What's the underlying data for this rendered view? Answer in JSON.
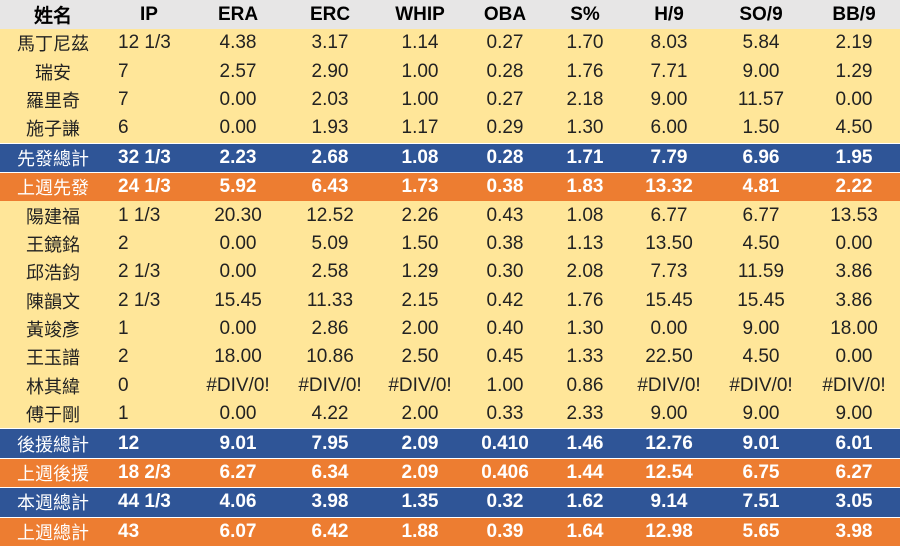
{
  "headers": [
    "姓名",
    "IP",
    "ERA",
    "ERC",
    "WHIP",
    "OBA",
    "S%",
    "H/9",
    "SO/9",
    "BB/9"
  ],
  "rows": [
    {
      "type": "player",
      "cells": [
        "馬丁尼茲",
        "12 1/3",
        "4.38",
        "3.17",
        "1.14",
        "0.27",
        "1.70",
        "8.03",
        "5.84",
        "2.19"
      ]
    },
    {
      "type": "player",
      "cells": [
        "瑞安",
        "7",
        "2.57",
        "2.90",
        "1.00",
        "0.28",
        "1.76",
        "7.71",
        "9.00",
        "1.29"
      ]
    },
    {
      "type": "player",
      "cells": [
        "羅里奇",
        "7",
        "0.00",
        "2.03",
        "1.00",
        "0.27",
        "2.18",
        "9.00",
        "11.57",
        "0.00"
      ]
    },
    {
      "type": "player",
      "cells": [
        "施子謙",
        "6",
        "0.00",
        "1.93",
        "1.17",
        "0.29",
        "1.30",
        "6.00",
        "1.50",
        "4.50"
      ]
    },
    {
      "type": "blue",
      "cells": [
        "先發總計",
        "32 1/3",
        "2.23",
        "2.68",
        "1.08",
        "0.28",
        "1.71",
        "7.79",
        "6.96",
        "1.95"
      ]
    },
    {
      "type": "orange",
      "cells": [
        "上週先發",
        "24 1/3",
        "5.92",
        "6.43",
        "1.73",
        "0.38",
        "1.83",
        "13.32",
        "4.81",
        "2.22"
      ]
    },
    {
      "type": "player",
      "cells": [
        "陽建福",
        "1 1/3",
        "20.30",
        "12.52",
        "2.26",
        "0.43",
        "1.08",
        "6.77",
        "6.77",
        "13.53"
      ]
    },
    {
      "type": "player",
      "cells": [
        "王鏡銘",
        "2",
        "0.00",
        "5.09",
        "1.50",
        "0.38",
        "1.13",
        "13.50",
        "4.50",
        "0.00"
      ]
    },
    {
      "type": "player",
      "cells": [
        "邱浩鈞",
        "2 1/3",
        "0.00",
        "2.58",
        "1.29",
        "0.30",
        "2.08",
        "7.73",
        "11.59",
        "3.86"
      ]
    },
    {
      "type": "player",
      "cells": [
        "陳韻文",
        "2 1/3",
        "15.45",
        "11.33",
        "2.15",
        "0.42",
        "1.76",
        "15.45",
        "15.45",
        "3.86"
      ]
    },
    {
      "type": "player",
      "cells": [
        "黃竣彥",
        "1",
        "0.00",
        "2.86",
        "2.00",
        "0.40",
        "1.30",
        "0.00",
        "9.00",
        "18.00"
      ]
    },
    {
      "type": "player",
      "cells": [
        "王玉譜",
        "2",
        "18.00",
        "10.86",
        "2.50",
        "0.45",
        "1.33",
        "22.50",
        "4.50",
        "0.00"
      ]
    },
    {
      "type": "player",
      "cells": [
        "林其緯",
        "0",
        "#DIV/0!",
        "#DIV/0!",
        "#DIV/0!",
        "1.00",
        "0.86",
        "#DIV/0!",
        "#DIV/0!",
        "#DIV/0!"
      ]
    },
    {
      "type": "player",
      "cells": [
        "傅于剛",
        "1",
        "0.00",
        "4.22",
        "2.00",
        "0.33",
        "2.33",
        "9.00",
        "9.00",
        "9.00"
      ]
    },
    {
      "type": "blue",
      "cells": [
        "後援總計",
        "12",
        "9.01",
        "7.95",
        "2.09",
        "0.410",
        "1.46",
        "12.76",
        "9.01",
        "6.01"
      ]
    },
    {
      "type": "orange",
      "cells": [
        "上週後援",
        "18 2/3",
        "6.27",
        "6.34",
        "2.09",
        "0.406",
        "1.44",
        "12.54",
        "6.75",
        "6.27"
      ]
    },
    {
      "type": "blue",
      "cells": [
        "本週總計",
        "44 1/3",
        "4.06",
        "3.98",
        "1.35",
        "0.32",
        "1.62",
        "9.14",
        "7.51",
        "3.05"
      ]
    },
    {
      "type": "orange",
      "cells": [
        "上週總計",
        "43",
        "6.07",
        "6.42",
        "1.88",
        "0.39",
        "1.64",
        "12.98",
        "5.65",
        "3.98"
      ]
    }
  ]
}
